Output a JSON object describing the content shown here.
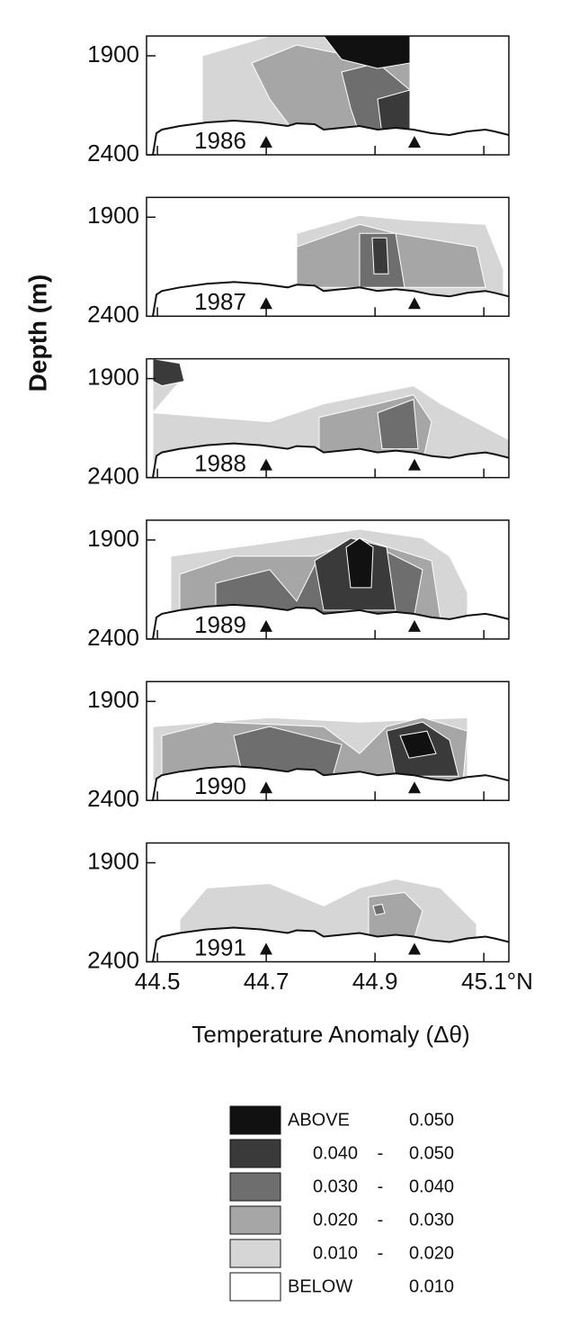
{
  "chart_data": {
    "type": "contour",
    "ylabel": "Depth (m)",
    "xlim": [
      44.48,
      45.146
    ],
    "xticks": [
      44.5,
      44.7,
      44.9,
      {
        "value": 45.1,
        "label": "45.1°N"
      }
    ],
    "panels": [
      {
        "label": "1986",
        "ylim": [
          1800,
          2400
        ],
        "yticks": [
          1900,
          2400
        ]
      },
      {
        "label": "1987",
        "ylim": [
          1800,
          2400
        ],
        "yticks": [
          1900,
          2400
        ]
      },
      {
        "label": "1988",
        "ylim": [
          1800,
          2400
        ],
        "yticks": [
          1900,
          2400
        ]
      },
      {
        "label": "1989",
        "ylim": [
          1800,
          2400
        ],
        "yticks": [
          1900,
          2400
        ]
      },
      {
        "label": "1990",
        "ylim": [
          1800,
          2400
        ],
        "yticks": [
          1900,
          2400
        ]
      },
      {
        "label": "1991",
        "ylim": [
          1800,
          2400
        ],
        "yticks": [
          1900,
          2400
        ]
      }
    ],
    "legend": {
      "title": "Temperature Anomaly (Δθ)",
      "items": [
        {
          "color": "#111111",
          "texts": [
            "ABOVE",
            "0.050"
          ]
        },
        {
          "color": "#3a3a3a",
          "texts": [
            "0.040",
            "-",
            "0.050"
          ]
        },
        {
          "color": "#6e6e6e",
          "texts": [
            "0.030",
            "-",
            "0.040"
          ]
        },
        {
          "color": "#a6a6a6",
          "texts": [
            "0.020",
            "-",
            "0.030"
          ]
        },
        {
          "color": "#d6d6d6",
          "texts": [
            "0.010",
            "-",
            "0.020"
          ]
        },
        {
          "color": "#ffffff",
          "texts": [
            "BELOW",
            "0.010"
          ]
        }
      ]
    }
  }
}
